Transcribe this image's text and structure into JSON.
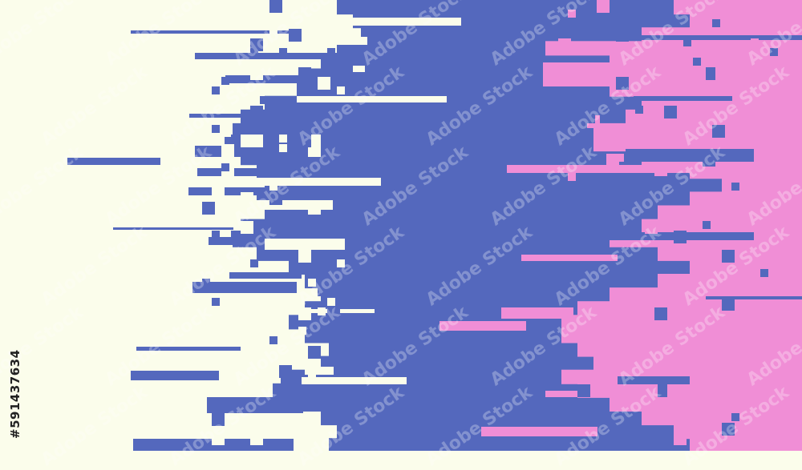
{
  "colors": {
    "background": "#FBFDEB",
    "blue": "#5468BD",
    "pink": "#F08ED6"
  },
  "watermark": {
    "text": "Adobe Stock"
  },
  "stock_id": "#591437634"
}
